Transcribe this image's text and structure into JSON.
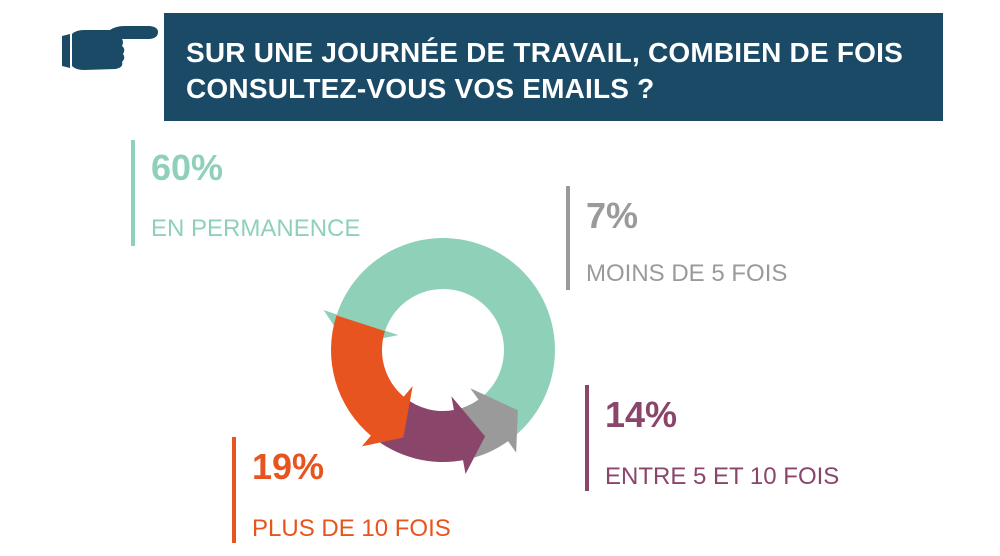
{
  "header": {
    "line1": "SUR UNE JOURNÉE DE TRAVAIL, COMBIEN DE FOIS",
    "line2": "CONSULTEZ-VOUS VOS EMAILS ?",
    "background": "#1b4a66",
    "icon": "pointing-hand-icon"
  },
  "chart_data": {
    "type": "pie",
    "title": "SUR UNE JOURNÉE DE TRAVAIL, COMBIEN DE FOIS CONSULTEZ-VOUS VOS EMAILS ?",
    "categories": [
      "EN PERMANENCE",
      "MOINS DE 5 FOIS",
      "ENTRE 5 ET 10 FOIS",
      "PLUS DE 10 FOIS"
    ],
    "values": [
      60,
      7,
      14,
      19
    ],
    "value_labels": [
      "60%",
      "7%",
      "14%",
      "19%"
    ],
    "colors": [
      "#8fd1b8",
      "#9a9a9a",
      "#8a456b",
      "#e8541f"
    ]
  }
}
